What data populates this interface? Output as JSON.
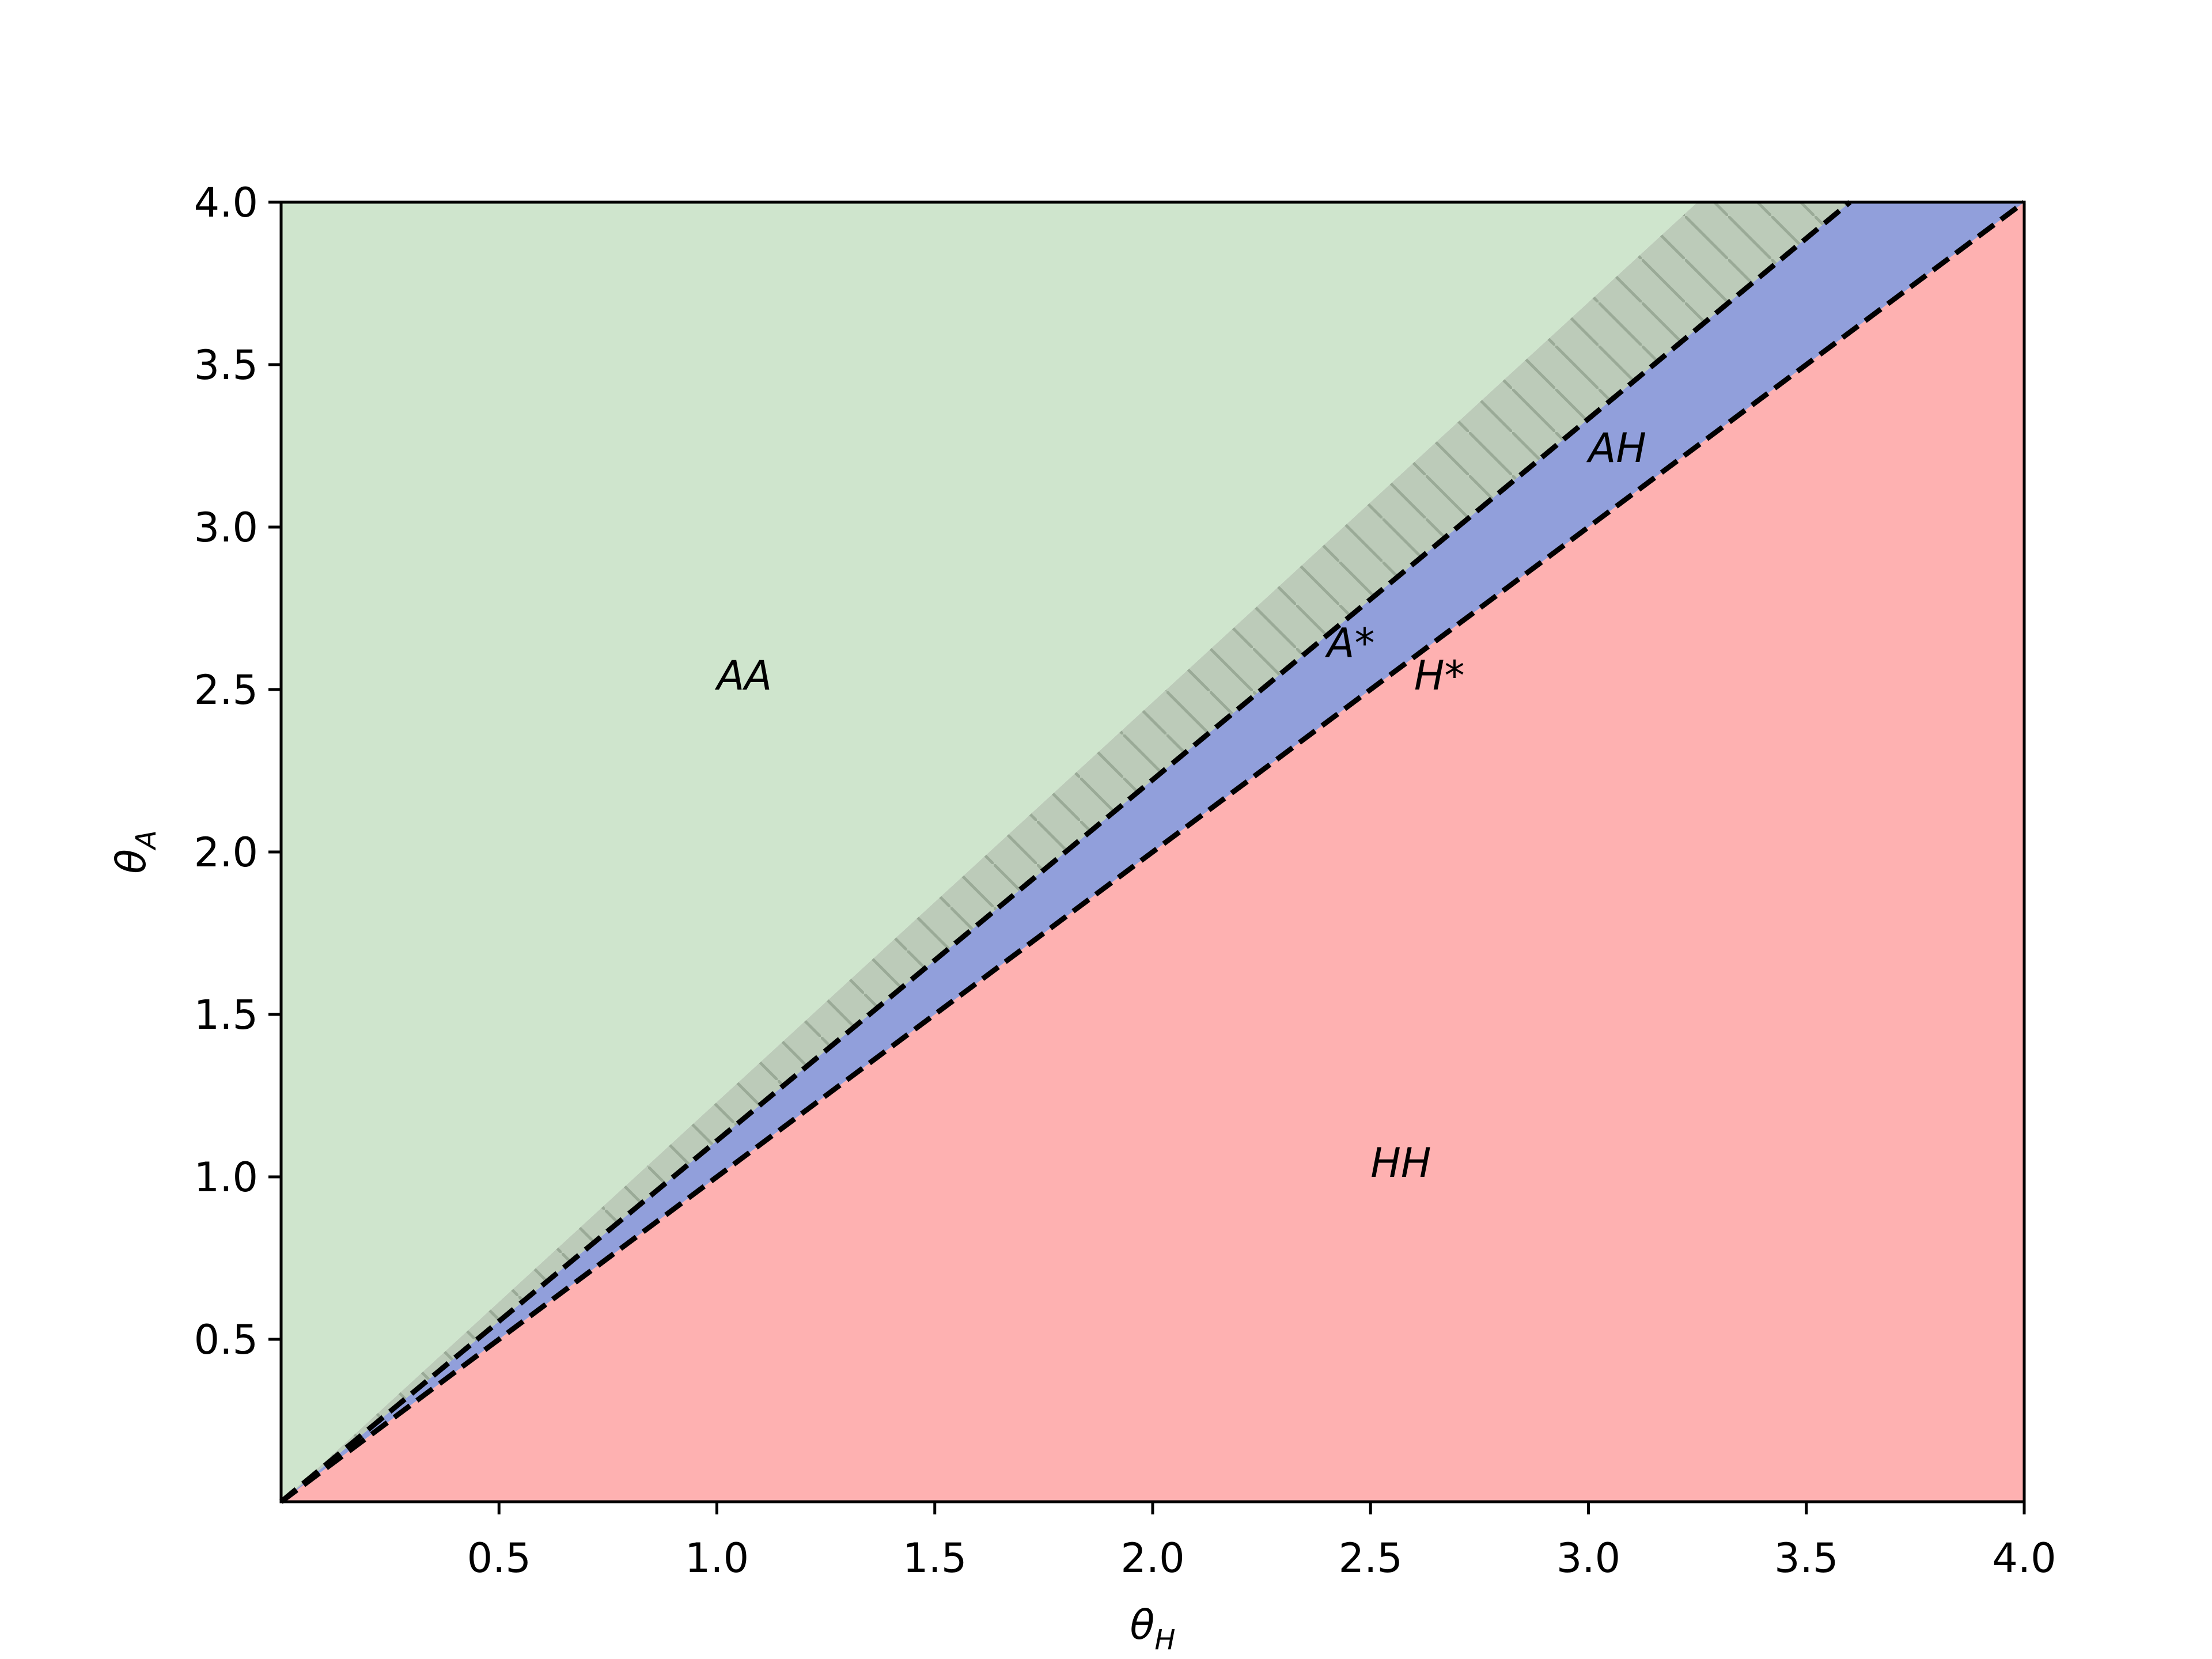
{
  "chart_data": {
    "type": "region",
    "xlabel": [
      "θ",
      "H"
    ],
    "ylabel": [
      "θ",
      "A"
    ],
    "xlim": [
      0,
      4
    ],
    "ylim": [
      0,
      4
    ],
    "xticks": [
      0.5,
      {
        "value": 1,
        "label": "1.0"
      },
      1.5,
      {
        "value": 2,
        "label": "2.0"
      },
      2.5,
      {
        "value": 3,
        "label": "3.0"
      },
      3.5,
      {
        "value": 4,
        "label": "4.0"
      }
    ],
    "yticks": [
      0.5,
      {
        "value": 1,
        "label": "1.0"
      },
      1.5,
      {
        "value": 2,
        "label": "2.0"
      },
      2.5,
      {
        "value": 3,
        "label": "3.0"
      },
      3.5,
      {
        "value": 4,
        "label": "4.0"
      }
    ],
    "series": [
      {
        "x": [
          0,
          4
        ],
        "values": [
          0,
          4
        ],
        "color": "#000000",
        "style": "dashed"
      },
      {
        "x": [
          0,
          3.6
        ],
        "values": [
          0,
          4
        ],
        "color": "#000000",
        "style": "dashed"
      },
      {
        "x": [
          0,
          3.25
        ],
        "values": [
          0,
          4
        ],
        "color": "#000000",
        "style": "none"
      }
    ],
    "fills": [
      {
        "color": "#feb1b1"
      },
      {
        "color": "#919fdb"
      },
      {
        "color": "#bccbb9",
        "hatch": "#9aaa97"
      },
      {
        "color": "#cfe5cd"
      }
    ],
    "annotations": [
      {
        "text": "AA",
        "x": 1.0,
        "y": 2.5
      },
      {
        "text": "AH",
        "x": 3.0,
        "y": 3.2
      },
      {
        "text": "A*",
        "x": 2.4,
        "y": 2.6
      },
      {
        "text": "H*",
        "x": 2.6,
        "y": 2.5
      },
      {
        "text": "HH",
        "x": 2.5,
        "y": 1.0
      }
    ]
  }
}
